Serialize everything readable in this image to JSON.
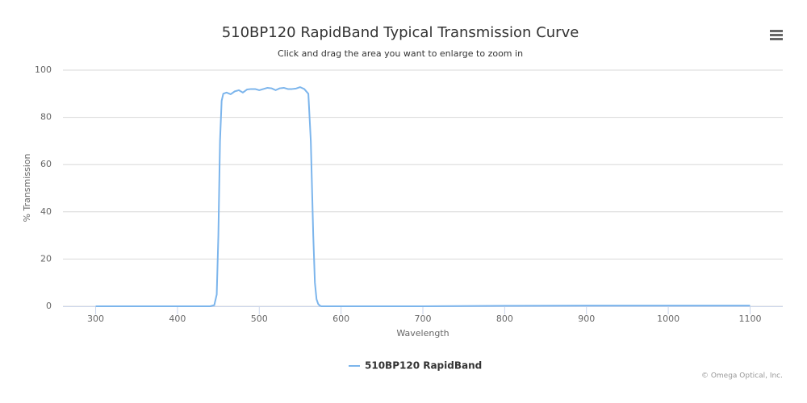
{
  "chart_data": {
    "type": "line",
    "title": "510BP120 RapidBand Typical Transmission Curve",
    "subtitle": "Click and drag the area you want to enlarge to zoom in",
    "x_label": "Wavelength",
    "y_label": "% Transmission",
    "credits": "© Omega Optical, Inc.",
    "xlim": [
      260,
      1140
    ],
    "ylim": [
      0,
      100
    ],
    "xticks": [
      300,
      400,
      500,
      600,
      700,
      800,
      900,
      1000,
      1100
    ],
    "yticks": [
      0,
      20,
      40,
      60,
      80,
      100
    ],
    "grid": true,
    "x": [
      300,
      440,
      445,
      448,
      450,
      452,
      454,
      456,
      460,
      465,
      470,
      475,
      480,
      485,
      490,
      495,
      500,
      505,
      510,
      515,
      520,
      525,
      530,
      535,
      540,
      545,
      550,
      555,
      560,
      563,
      566,
      568,
      570,
      572,
      574,
      576,
      580,
      600,
      700,
      800,
      900,
      1000,
      1100
    ],
    "series": [
      {
        "name": "510BP120 RapidBand",
        "color": "#7cb5ec",
        "values": [
          0,
          0,
          0.5,
          5,
          30,
          70,
          87,
          90,
          90.5,
          89.8,
          91,
          91.5,
          90.5,
          91.8,
          92,
          92,
          91.5,
          92,
          92.5,
          92.3,
          91.5,
          92.3,
          92.5,
          92,
          92,
          92.2,
          92.8,
          92,
          90,
          70,
          30,
          10,
          3,
          1,
          0.3,
          0,
          0,
          0,
          0,
          0.2,
          0.3,
          0.3,
          0.3
        ]
      }
    ]
  }
}
